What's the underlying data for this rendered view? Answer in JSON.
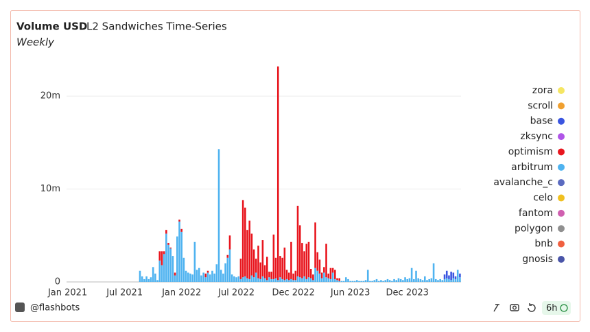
{
  "title": "Volume USD",
  "subtitle": "L2 Sandwiches Time-Series",
  "period": "Weekly",
  "footer": "@flashbots",
  "refresh": "6h",
  "chart_data": {
    "type": "stacked_bar",
    "categories": [
      "Jan 2021",
      null,
      null,
      null,
      null,
      null,
      null,
      null,
      null,
      null,
      null,
      null,
      null,
      null,
      null,
      null,
      null,
      null,
      null,
      null,
      null,
      null,
      null,
      null,
      null,
      null,
      "Jul 2021",
      null,
      null,
      null,
      null,
      null,
      null,
      null,
      null,
      null,
      null,
      null,
      null,
      null,
      null,
      null,
      null,
      null,
      null,
      null,
      null,
      null,
      null,
      null,
      null,
      null,
      "Jan 2022",
      null,
      null,
      null,
      null,
      null,
      null,
      null,
      null,
      null,
      null,
      null,
      null,
      null,
      null,
      null,
      null,
      null,
      null,
      null,
      null,
      null,
      null,
      null,
      null,
      "Jul 2022",
      null,
      null,
      null,
      null,
      null,
      null,
      null,
      null,
      null,
      null,
      null,
      null,
      null,
      null,
      null,
      null,
      null,
      null,
      null,
      null,
      null,
      null,
      null,
      null,
      null,
      "Dec 2022",
      null,
      null,
      null,
      null,
      null,
      null,
      null,
      null,
      null,
      null,
      null,
      null,
      null,
      null,
      null,
      null,
      null,
      null,
      null,
      null,
      null,
      null,
      null,
      null,
      null,
      "Jun 2023",
      null,
      null,
      null,
      null,
      null,
      null,
      null,
      null,
      null,
      null,
      null,
      null,
      null,
      null,
      null,
      null,
      null,
      null,
      null,
      null,
      null,
      null,
      null,
      null,
      null,
      "Dec 2023",
      null,
      null,
      null,
      null,
      null,
      null,
      null,
      null,
      null,
      null,
      null,
      null,
      null,
      null,
      null,
      null,
      null,
      null,
      null,
      null,
      null,
      null,
      null,
      null
    ],
    "series": [
      {
        "name": "zora",
        "color": "#f5e663"
      },
      {
        "name": "scroll",
        "color": "#f0a030"
      },
      {
        "name": "base",
        "color": "#3a55e0",
        "values": [
          0,
          0,
          0,
          0,
          0,
          0,
          0,
          0,
          0,
          0,
          0,
          0,
          0,
          0,
          0,
          0,
          0,
          0,
          0,
          0,
          0,
          0,
          0,
          0,
          0,
          0,
          0,
          0,
          0,
          0,
          0,
          0,
          0,
          0,
          0,
          0,
          0,
          0,
          0,
          0,
          0,
          0,
          0,
          0,
          0,
          0,
          0,
          0,
          0,
          0,
          0,
          0,
          0,
          0,
          0,
          0,
          0,
          0,
          0,
          0,
          0,
          0,
          0,
          0,
          0,
          0,
          0,
          0,
          0,
          0,
          0,
          0,
          0,
          0,
          0,
          0,
          0,
          0,
          0,
          0,
          0,
          0,
          0,
          0,
          0,
          0,
          0,
          0,
          0,
          0,
          0,
          0,
          0,
          0,
          0,
          0,
          0,
          0,
          0,
          0,
          0,
          0,
          0,
          0,
          0,
          0,
          0,
          0,
          0,
          0,
          0,
          0,
          0,
          0,
          0,
          0,
          0,
          0,
          0,
          0,
          0,
          0,
          0,
          0,
          0,
          0,
          0,
          0,
          0,
          0,
          0,
          0,
          0,
          0,
          0,
          0,
          0,
          0,
          0,
          0,
          0,
          0,
          0,
          0,
          0,
          0,
          0,
          0,
          0,
          0,
          0,
          0,
          0,
          0,
          0,
          0,
          0,
          0,
          0,
          0,
          0,
          0,
          0,
          0,
          0,
          0,
          0,
          0,
          0,
          0,
          0,
          0,
          0.5,
          0.8,
          0.4,
          0.9,
          0.6,
          0.3,
          0,
          0.4
        ]
      },
      {
        "name": "zksync",
        "color": "#b055e8"
      },
      {
        "name": "optimism",
        "color": "#e8161e",
        "values": [
          0,
          0,
          0,
          0,
          0,
          0,
          0,
          0,
          0,
          0,
          0,
          0,
          0,
          0,
          0,
          0,
          0,
          0,
          0,
          0,
          0,
          0,
          0,
          0,
          0,
          0,
          0,
          0,
          0,
          0,
          0,
          0,
          0,
          0,
          0,
          0,
          0,
          0,
          0,
          0,
          0,
          0,
          1.0,
          1.5,
          0.3,
          0.4,
          0.2,
          0.1,
          0,
          0.3,
          0,
          0.2,
          0.3,
          0,
          0,
          0,
          0,
          0,
          0,
          0,
          0,
          0,
          0,
          0.4,
          0.2,
          0,
          0,
          0,
          0,
          0,
          0,
          0,
          0,
          0.3,
          1.5,
          0,
          0,
          0,
          0,
          2.2,
          8.3,
          7.4,
          5.2,
          6.3,
          4.5,
          3.0,
          1.5,
          3.5,
          1.8,
          3.9,
          1.4,
          2.5,
          0.6,
          0.8,
          4.8,
          2.2,
          23.0,
          2.3,
          2.3,
          3.5,
          1.0,
          0.8,
          4.0,
          0.7,
          1.0,
          7.6,
          5.6,
          3.8,
          2.7,
          3.8,
          3.8,
          1.0,
          0.6,
          4.9,
          2.0,
          1.5,
          0.6,
          0.6,
          3.6,
          0.5,
          1.2,
          0.5,
          1.0,
          0.2,
          0.3,
          0,
          0,
          0,
          0,
          0,
          0,
          0,
          0,
          0,
          0,
          0,
          0,
          0,
          0,
          0,
          0,
          0,
          0,
          0,
          0,
          0,
          0,
          0,
          0,
          0,
          0,
          0,
          0,
          0,
          0,
          0,
          0,
          0,
          0,
          0,
          0,
          0,
          0,
          0,
          0,
          0,
          0,
          0,
          0,
          0,
          0,
          0,
          0,
          0,
          0,
          0,
          0,
          0,
          0,
          0
        ]
      },
      {
        "name": "arbitrum",
        "color": "#4fb3f0",
        "values": [
          0,
          0,
          0,
          0,
          0,
          0,
          0,
          0,
          0,
          0,
          0,
          0,
          0,
          0,
          0,
          0,
          0,
          0,
          0,
          0,
          0,
          0,
          0,
          0,
          0,
          0,
          0,
          0,
          0,
          0,
          0,
          0,
          0,
          1.2,
          0.6,
          0.3,
          0.6,
          0.3,
          0.5,
          1.6,
          0.9,
          0.2,
          2.3,
          1.8,
          3.0,
          5.2,
          4.0,
          3.6,
          2.8,
          0.7,
          4.9,
          6.5,
          5.4,
          2.6,
          1.2,
          1.0,
          0.9,
          0.8,
          4.3,
          1.3,
          1.5,
          0.7,
          1.0,
          0.5,
          1.0,
          0.8,
          1.2,
          0.9,
          1.9,
          14.3,
          1.3,
          0.9,
          2.0,
          2.6,
          3.5,
          0.8,
          0.6,
          0.5,
          0.6,
          0.3,
          0.5,
          0.6,
          0.4,
          0.3,
          0.7,
          0.5,
          1.0,
          0.4,
          0.3,
          0.6,
          0.4,
          0.2,
          0.5,
          0.3,
          0.3,
          0.4,
          0.2,
          0.5,
          0.3,
          0.2,
          0.3,
          0.2,
          0.3,
          0.2,
          0.2,
          0.6,
          0.5,
          0.4,
          0.6,
          0.3,
          0.5,
          0.4,
          0.2,
          1.5,
          1.2,
          0.9,
          0.4,
          1.0,
          0.5,
          0.4,
          0.3,
          1.0,
          0.3,
          0.2,
          0.1,
          0.1,
          0.1,
          0.5,
          0.3,
          0.1,
          0.1,
          0.1,
          0.2,
          0.1,
          0.1,
          0.1,
          0.2,
          1.3,
          0.1,
          0.1,
          0.2,
          0.3,
          0.1,
          0.2,
          0.1,
          0.2,
          0.3,
          0.2,
          0.1,
          0.3,
          0.2,
          0.4,
          0.3,
          0.2,
          0.5,
          0.3,
          0.4,
          1.5,
          0.3,
          1.2,
          0.4,
          0.3,
          0.2,
          0.6,
          0.2,
          0.3,
          0.4,
          2.0,
          0.3,
          0.2,
          0.3,
          0.2,
          0.3,
          0.4,
          0.3,
          0.2,
          0.4,
          0.3,
          1.3,
          0.5
        ]
      },
      {
        "name": "avalanche_c",
        "color": "#5b6bc0",
        "hidden": true
      },
      {
        "name": "celo",
        "color": "#f0c020",
        "hidden": true
      },
      {
        "name": "fantom",
        "color": "#d060b0",
        "hidden": true
      },
      {
        "name": "polygon",
        "color": "#909090",
        "hidden": true
      },
      {
        "name": "bnb",
        "color": "#f06040",
        "hidden": true
      },
      {
        "name": "gnosis",
        "color": "#4a55a8",
        "hidden": true
      }
    ],
    "ylim": [
      0,
      24
    ],
    "yticks": [
      0,
      {
        "value": 10,
        "label": "10m"
      },
      {
        "value": 20,
        "label": "20m"
      }
    ],
    "grid": true,
    "legend": "right"
  }
}
